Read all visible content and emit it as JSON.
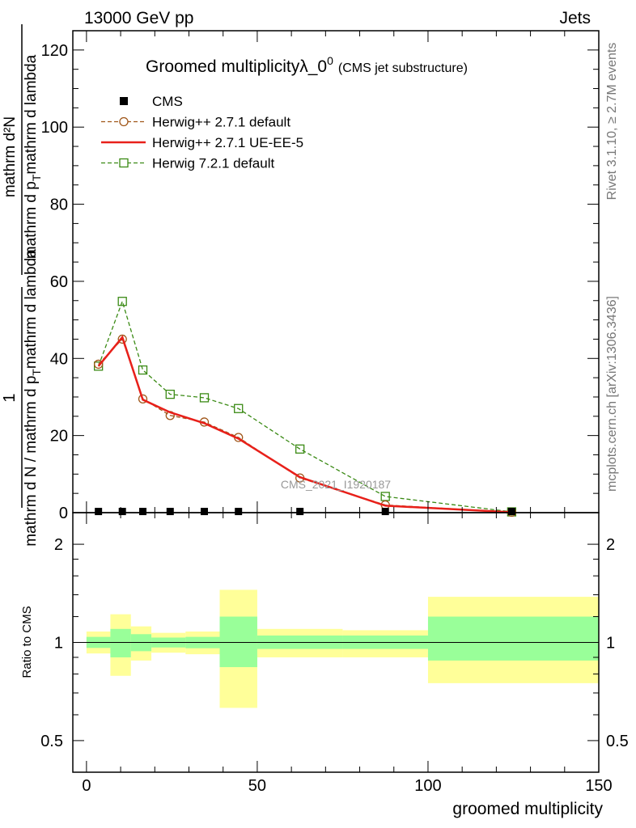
{
  "header": {
    "left": "13000 GeV pp",
    "right": "Jets"
  },
  "side": {
    "top": "Rivet 3.1.10, ≥ 2.7M events",
    "bottom": "mcplots.cern.ch [arXiv:1306.3436]"
  },
  "chart_data": [
    {
      "type": "line",
      "title": "Groomed multiplicityλ_0",
      "title_sup": "0",
      "subtitle": "(CMS jet substructure)",
      "ylabel_num": "mathrm d²N",
      "ylabel_frac_num": "1",
      "ylabel_den": "mathrm d N / mathrm d p",
      "ylabel_den_sub": "T",
      "ylabel_den_tail": "mathrm d lambda",
      "ylabel_main": "mathrm d p",
      "ylabel_main_sub": "T",
      "ylabel_main_tail": "mathrm d lambda",
      "watermark": "CMS_2021_I1920187",
      "xlim": [
        -4,
        150
      ],
      "ylim": [
        0,
        125
      ],
      "y_ticks": [
        0,
        20,
        40,
        60,
        80,
        100,
        120
      ],
      "x_ticks": [
        0,
        50,
        100,
        150
      ],
      "legend": [
        {
          "label": "CMS",
          "color": "#000000",
          "marker": "filled-square",
          "line": "none"
        },
        {
          "label": "Herwig++ 2.7.1 default",
          "color": "#a0571a",
          "marker": "open-circle",
          "line": "dashed"
        },
        {
          "label": "Herwig++ 2.7.1 UE-EE-5",
          "color": "#e8201a",
          "marker": "none",
          "line": "solid"
        },
        {
          "label": "Herwig 7.2.1 default",
          "color": "#3a8a14",
          "marker": "open-square",
          "line": "dashed"
        }
      ],
      "series": [
        {
          "name": "CMS",
          "x": [
            3.5,
            10.5,
            16.5,
            24.5,
            34.5,
            44.5,
            62.5,
            87.5,
            124.5
          ],
          "y": [
            0.3,
            0.3,
            0.3,
            0.3,
            0.3,
            0.3,
            0.3,
            0.3,
            0.3
          ]
        },
        {
          "name": "Herwig++ 2.7.1 default",
          "x": [
            3.5,
            10.5,
            16.5,
            24.5,
            34.5,
            44.5,
            62.5,
            87.5,
            124.5
          ],
          "y": [
            38.5,
            45.0,
            29.5,
            25.2,
            23.5,
            19.5,
            9.0,
            2.0,
            0.1
          ]
        },
        {
          "name": "Herwig++ 2.7.1 UE-EE-5",
          "x": [
            3.5,
            10.5,
            16.5,
            24.5,
            34.5,
            44.5,
            62.5,
            87.5,
            124.5
          ],
          "y": [
            38.0,
            45.5,
            29.3,
            26.0,
            23.2,
            19.2,
            9.2,
            1.8,
            0.1
          ]
        },
        {
          "name": "Herwig 7.2.1 default",
          "x": [
            3.5,
            10.5,
            16.5,
            24.5,
            34.5,
            44.5,
            62.5,
            87.5,
            124.5
          ],
          "y": [
            38.0,
            54.8,
            37.0,
            30.7,
            29.8,
            27.0,
            16.5,
            4.2,
            0.2
          ]
        }
      ]
    },
    {
      "type": "area",
      "ylabel": "Ratio to CMS",
      "xlabel": "groomed multiplicity",
      "scale": "log",
      "ylim": [
        0.4,
        2.5
      ],
      "y_ticks": [
        0.5,
        1,
        2
      ],
      "x_ticks": [
        0,
        50,
        100,
        150
      ],
      "reference": 1,
      "bins": [
        {
          "lo": 0,
          "hi": 7,
          "inner": [
            0.962,
            1.04
          ],
          "outer": [
            0.925,
            1.08
          ]
        },
        {
          "lo": 7,
          "hi": 13,
          "inner": [
            0.9,
            1.1
          ],
          "outer": [
            0.79,
            1.22
          ]
        },
        {
          "lo": 13,
          "hi": 19,
          "inner": [
            0.94,
            1.06
          ],
          "outer": [
            0.88,
            1.12
          ]
        },
        {
          "lo": 19,
          "hi": 29,
          "inner": [
            0.965,
            1.035
          ],
          "outer": [
            0.93,
            1.07
          ]
        },
        {
          "lo": 29,
          "hi": 39,
          "inner": [
            0.96,
            1.04
          ],
          "outer": [
            0.92,
            1.08
          ]
        },
        {
          "lo": 39,
          "hi": 50,
          "inner": [
            0.84,
            1.2
          ],
          "outer": [
            0.63,
            1.45
          ]
        },
        {
          "lo": 50,
          "hi": 75,
          "inner": [
            0.955,
            1.05
          ],
          "outer": [
            0.9,
            1.1
          ]
        },
        {
          "lo": 75,
          "hi": 100,
          "inner": [
            0.955,
            1.05
          ],
          "outer": [
            0.9,
            1.09
          ]
        },
        {
          "lo": 100,
          "hi": 150,
          "inner": [
            0.88,
            1.2
          ],
          "outer": [
            0.75,
            1.38
          ]
        }
      ]
    }
  ],
  "colors": {
    "inner_band": "#99ff99",
    "outer_band": "#ffff99",
    "axis": "#000000",
    "side_text": "#777777",
    "watermark": "#999999"
  }
}
